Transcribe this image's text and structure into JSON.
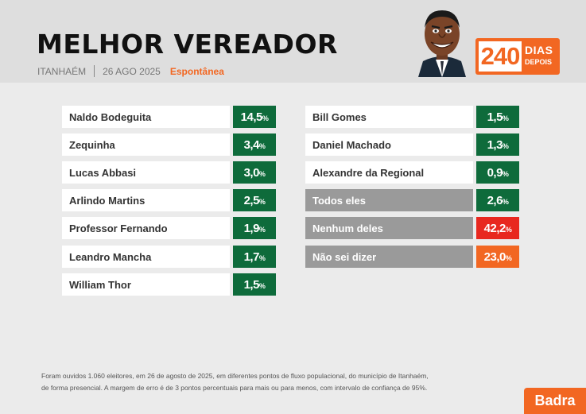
{
  "header": {
    "title": "MELHOR VEREADOR",
    "city": "ITANHAÉM",
    "date": "26 AGO 2025",
    "survey_type": "Espontânea",
    "badge_number": "240",
    "badge_word1": "DIAS",
    "badge_word2": "DEPOIS"
  },
  "colors": {
    "green": "#0e6b3b",
    "red": "#e8281f",
    "orange": "#f26722",
    "gray": "#9a9a9a"
  },
  "chart_data": {
    "type": "bar",
    "unit": "%",
    "categories": [
      "Naldo Bodeguita",
      "Zequinha",
      "Lucas Abbasi",
      "Arlindo Martins",
      "Professor Fernando",
      "Leandro Mancha",
      "William Thor",
      "Bill Gomes",
      "Daniel Machado",
      "Alexandre da Regional",
      "Todos eles",
      "Nenhum deles",
      "Não sei dizer"
    ],
    "values": [
      14.5,
      3.4,
      3.0,
      2.5,
      1.9,
      1.7,
      1.5,
      1.5,
      1.3,
      0.9,
      2.6,
      42.2,
      23.0
    ],
    "value_labels": [
      "14,5",
      "3,4",
      "3,0",
      "2,5",
      "1,9",
      "1,7",
      "1,5",
      "1,5",
      "1,3",
      "0,9",
      "2,6",
      "42,2",
      "23,0"
    ],
    "label_style": [
      "white",
      "white",
      "white",
      "white",
      "white",
      "white",
      "white",
      "white",
      "white",
      "white",
      "gray",
      "gray",
      "gray"
    ],
    "value_color": [
      "green",
      "green",
      "green",
      "green",
      "green",
      "green",
      "green",
      "green",
      "green",
      "green",
      "green",
      "red",
      "orange"
    ]
  },
  "footnote": {
    "line1": "Foram ouvidos 1.060 eleitores, em 26 de agosto de 2025, em diferentes pontos de fluxo populacional, do município de Itanhaém,",
    "line2": "de forma presencial. A margem de erro é de 3 pontos percentuais para mais ou para menos, com intervalo de confiança de 95%."
  },
  "brand": "Badra"
}
